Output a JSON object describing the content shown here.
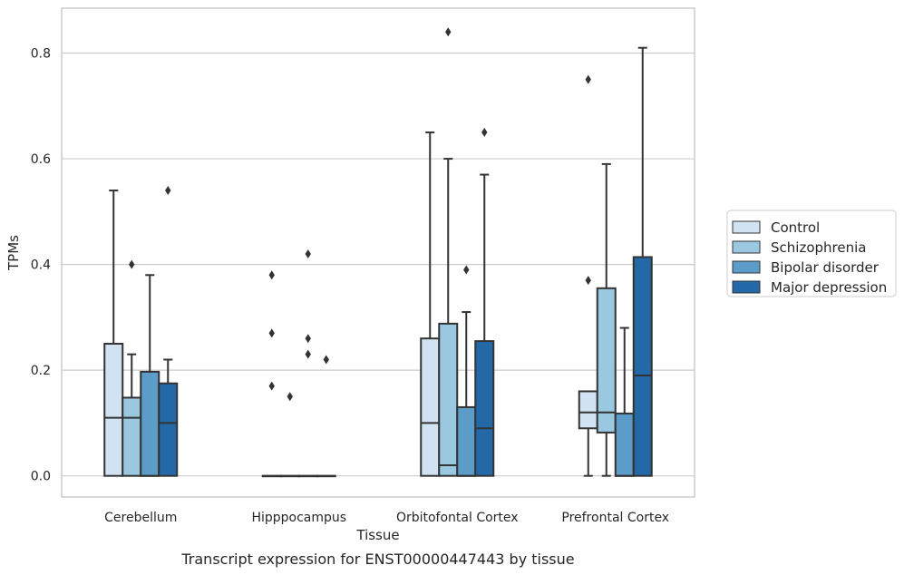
{
  "chart_data": {
    "type": "box",
    "caption": "Transcript expression for ENST00000447443 by tissue",
    "xlabel": "Tissue",
    "ylabel": "TPMs",
    "ylim": [
      -0.04,
      0.885
    ],
    "yticks": [
      0.0,
      0.2,
      0.4,
      0.6,
      0.8
    ],
    "ytick_labels": [
      "0.0",
      "0.2",
      "0.4",
      "0.6",
      "0.8"
    ],
    "grid": "horizontal",
    "legend_position": "right",
    "categories": [
      "Cerebellum",
      "Hipppocampus",
      "Orbitofontal Cortex",
      "Prefrontal Cortex"
    ],
    "series": [
      {
        "name": "Control",
        "color": "#d1e2f2",
        "boxes": [
          {
            "whislo": 0.0,
            "q1": 0.0,
            "med": 0.11,
            "q3": 0.25,
            "whishi": 0.54,
            "fliers": []
          },
          {
            "whislo": 0.0,
            "q1": 0.0,
            "med": 0.0,
            "q3": 0.0,
            "whishi": 0.0,
            "fliers": [
              0.38,
              0.27,
              0.17
            ]
          },
          {
            "whislo": 0.0,
            "q1": 0.0,
            "med": 0.1,
            "q3": 0.26,
            "whishi": 0.65,
            "fliers": []
          },
          {
            "whislo": 0.0,
            "q1": 0.09,
            "med": 0.12,
            "q3": 0.16,
            "whishi": 0.16,
            "fliers": [
              0.75,
              0.37
            ]
          }
        ]
      },
      {
        "name": "Schizophrenia",
        "color": "#9ac8e0",
        "boxes": [
          {
            "whislo": 0.0,
            "q1": 0.0,
            "med": 0.11,
            "q3": 0.148,
            "whishi": 0.23,
            "fliers": [
              0.4
            ]
          },
          {
            "whislo": 0.0,
            "q1": 0.0,
            "med": 0.0,
            "q3": 0.0,
            "whishi": 0.0,
            "fliers": [
              0.15
            ]
          },
          {
            "whislo": 0.0,
            "q1": 0.0,
            "med": 0.02,
            "q3": 0.288,
            "whishi": 0.6,
            "fliers": [
              0.84
            ]
          },
          {
            "whislo": 0.0,
            "q1": 0.082,
            "med": 0.12,
            "q3": 0.355,
            "whishi": 0.59,
            "fliers": []
          }
        ]
      },
      {
        "name": "Bipolar disorder",
        "color": "#5b9cc8",
        "boxes": [
          {
            "whislo": 0.0,
            "q1": 0.0,
            "med": 0.0,
            "q3": 0.197,
            "whishi": 0.38,
            "fliers": []
          },
          {
            "whislo": 0.0,
            "q1": 0.0,
            "med": 0.0,
            "q3": 0.0,
            "whishi": 0.0,
            "fliers": [
              0.42,
              0.26,
              0.23
            ]
          },
          {
            "whislo": 0.0,
            "q1": 0.0,
            "med": 0.0,
            "q3": 0.13,
            "whishi": 0.31,
            "fliers": [
              0.39
            ]
          },
          {
            "whislo": 0.0,
            "q1": 0.0,
            "med": 0.0,
            "q3": 0.118,
            "whishi": 0.28,
            "fliers": []
          }
        ]
      },
      {
        "name": "Major depression",
        "color": "#2369a8",
        "boxes": [
          {
            "whislo": 0.0,
            "q1": 0.0,
            "med": 0.1,
            "q3": 0.175,
            "whishi": 0.22,
            "fliers": [
              0.54
            ]
          },
          {
            "whislo": 0.0,
            "q1": 0.0,
            "med": 0.0,
            "q3": 0.0,
            "whishi": 0.0,
            "fliers": [
              0.22
            ]
          },
          {
            "whislo": 0.0,
            "q1": 0.0,
            "med": 0.09,
            "q3": 0.255,
            "whishi": 0.57,
            "fliers": [
              0.65
            ]
          },
          {
            "whislo": 0.0,
            "q1": 0.0,
            "med": 0.19,
            "q3": 0.414,
            "whishi": 0.81,
            "fliers": []
          }
        ]
      }
    ]
  }
}
